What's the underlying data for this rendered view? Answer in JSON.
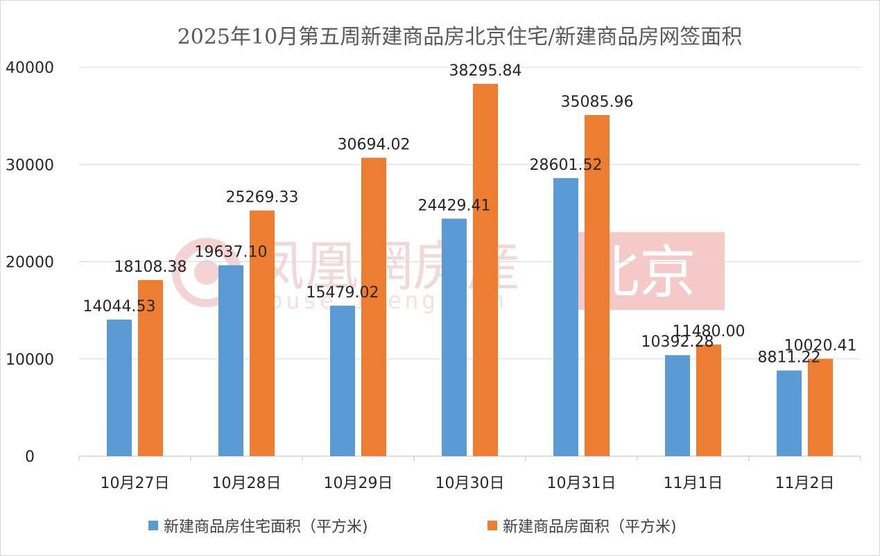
{
  "chart_data": {
    "type": "bar",
    "title": "2025年10月第五周新建商品房北京住宅/新建商品房网签面积",
    "categories": [
      "10月27日",
      "10月28日",
      "10月29日",
      "10月30日",
      "10月31日",
      "11月1日",
      "11月2日"
    ],
    "series": [
      {
        "name": "新建商品房住宅面积（平方米)",
        "color": "#5b9bd5",
        "values": [
          14044.53,
          19637.1,
          15479.02,
          24429.41,
          28601.52,
          10392.28,
          8811.22
        ],
        "labels": [
          "14044.53",
          "19637.10",
          "15479.02",
          "24429.41",
          "28601.52",
          "10392.28",
          "8811.22"
        ]
      },
      {
        "name": "新建商品房面积（平方米)",
        "color": "#ed7d31",
        "values": [
          18108.38,
          25269.33,
          30694.02,
          38295.84,
          35085.96,
          11480.0,
          10020.41
        ],
        "labels": [
          "18108.38",
          "25269.33",
          "30694.02",
          "38295.84",
          "35085.96",
          "11480.00",
          "10020.41"
        ]
      }
    ],
    "ylim": [
      0,
      40000
    ],
    "yticks": [
      "0",
      "10000",
      "20000",
      "30000",
      "40000"
    ],
    "xlabel": "",
    "ylabel": "",
    "grid": true,
    "legend_position": "bottom"
  },
  "watermark": {
    "brand": "凤凰網房産",
    "url": "house.ifeng.com",
    "city": "北京"
  }
}
